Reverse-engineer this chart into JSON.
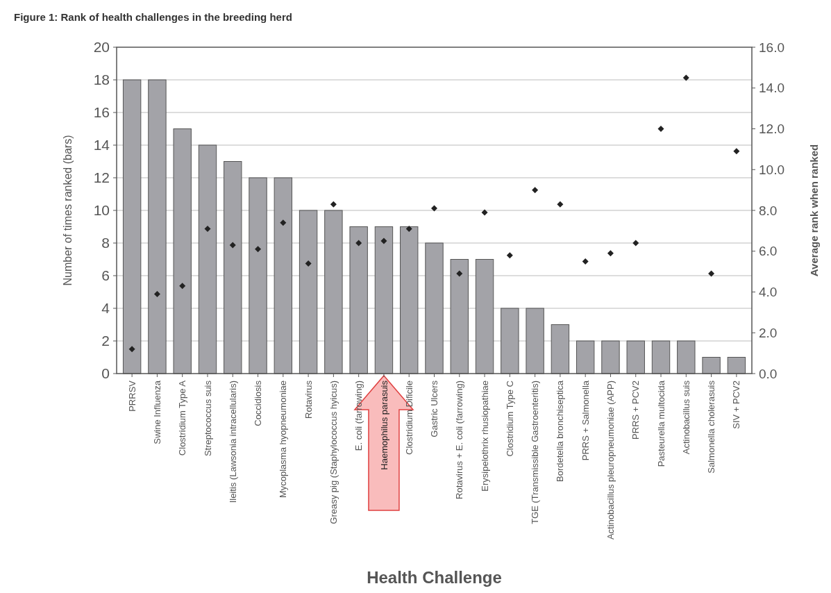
{
  "chart_data": {
    "type": "bar",
    "title": "Figure 1: Rank of health challenges in the breeding herd",
    "xlabel": "Health Challenge",
    "ylabel": "Number of times ranked (bars)",
    "y2label": "Average rank when ranked",
    "categories": [
      "PRRSV",
      "Swine Influenza",
      "Clostridium Type A",
      "Streptococcus suis",
      "Ileitis (Lawsonia intracellularis)",
      "Coccidiosis",
      "Mycoplasma hyopneumoniae",
      "Rotavirus",
      "Greasy pig (Staphylococcus hyicus)",
      "E. coli (farrowing)",
      "Haemophilus parasuis",
      "Clostridium Dificile",
      "Gastric Ulcers",
      "Rotavirus + E. coli (farrowing)",
      "Erysipelothrix rhusiopathiae",
      "Clostridium Type C",
      "TGE (Transmissible Gastroenteritis)",
      "Bordetella bronchiseptica",
      "PRRS + Salmonella",
      "Actinobacillus pleuropneumoniae (APP)",
      "PRRS + PCV2",
      "Pasteurella multocida",
      "Actinobacillus suis",
      "Salmonella cholerasuis",
      "SIV + PCV2"
    ],
    "series": [
      {
        "color": "#a3a3a8",
        "values": [
          18,
          18,
          15,
          14,
          13,
          12,
          12,
          10,
          10,
          9,
          9,
          9,
          8,
          7,
          7,
          4,
          4,
          3,
          2,
          2,
          2,
          2,
          2,
          1,
          1
        ]
      },
      {
        "type": "scatter",
        "axis": "y2",
        "color": "#222222",
        "values": [
          1.2,
          3.9,
          4.3,
          7.1,
          6.3,
          6.1,
          7.4,
          5.4,
          8.3,
          6.4,
          6.5,
          7.1,
          8.1,
          4.9,
          7.9,
          5.8,
          9.0,
          8.3,
          5.5,
          5.9,
          6.4,
          12.0,
          14.5,
          4.9,
          10.9
        ]
      }
    ],
    "ylim": [
      0,
      20
    ],
    "yticks": [
      0,
      2,
      4,
      6,
      8,
      10,
      12,
      14,
      16,
      18,
      20
    ],
    "y2lim": [
      0,
      16
    ],
    "y2ticks": [
      {
        "value": 0,
        "label": "0.0"
      },
      {
        "value": 2,
        "label": "2.0"
      },
      {
        "value": 4,
        "label": "4.0"
      },
      {
        "value": 6,
        "label": "6.0"
      },
      {
        "value": 8,
        "label": "8.0"
      },
      {
        "value": 10,
        "label": "10.0"
      },
      {
        "value": 12,
        "label": "12.0"
      },
      {
        "value": 14,
        "label": "14.0"
      },
      {
        "value": 16,
        "label": "16.0"
      }
    ],
    "grid": "y",
    "marker": "diamond"
  }
}
